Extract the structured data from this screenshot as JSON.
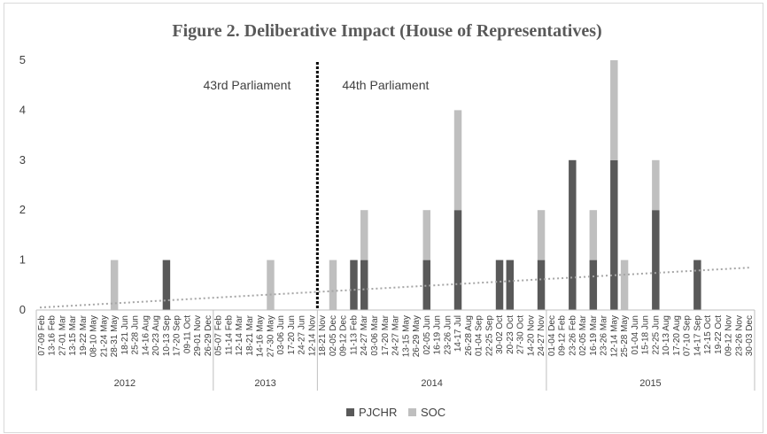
{
  "chart_data": {
    "type": "bar",
    "stacked": true,
    "title": "Figure 2. Deliberative Impact (House of Representatives)",
    "ylim": [
      0,
      5
    ],
    "yticks": [
      0,
      1,
      2,
      3,
      4,
      5
    ],
    "grid": false,
    "legend_position": "bottom",
    "categories": [
      "07-09 Feb",
      "13-16 Feb",
      "27-01 Mar",
      "13-15 Mar",
      "19-22 Mar",
      "08-10 May",
      "21-24 May",
      "28-31 May",
      "18-21 Jun",
      "25-28 Jun",
      "14-16 Aug",
      "20-23 Aug",
      "10-13 Sep",
      "17-20 Sep",
      "09-11 Oct",
      "29-01 Nov",
      "26-29 Dec",
      "05-07 Feb",
      "11-14 Feb",
      "12-14 Mar",
      "18-21 Mar",
      "14-16 May",
      "27-30 May",
      "03-06 Jun",
      "17-20 Jun",
      "24-27 Jun",
      "12-14 Nov",
      "18-21 Nov",
      "02-05 Dec",
      "09-12 Dec",
      "11-13 Feb",
      "24-27 Mar",
      "03-06 Mar",
      "17-20 Mar",
      "24-27 Mar",
      "13-15 May",
      "26-29 May",
      "02-05 Jun",
      "16-19 Jun",
      "23-26 Jun",
      "14-17 Jul",
      "26-28 Aug",
      "01-04 Sep",
      "22-25 Sep",
      "30-02 Oct",
      "20-23 Oct",
      "27-30 Oct",
      "14-20 Nov",
      "24-27 Nov",
      "01-04 Dec",
      "09-12 Feb",
      "23-26 Feb",
      "02-05 Mar",
      "16-19 Mar",
      "23-26 Mar",
      "12-14 May",
      "25-28 May",
      "01-04 Jun",
      "15-18 Jun",
      "22-25 Jun",
      "10-13 Aug",
      "17-20 Aug",
      "07-10 Sep",
      "14-17 Sep",
      "12-15 Oct",
      "19-22 Oct",
      "09-12 Nov",
      "23-26 Nov",
      "30-03 Dec"
    ],
    "series": [
      {
        "name": "PJCHR",
        "color": "#595959",
        "values": [
          0,
          0,
          0,
          0,
          0,
          0,
          0,
          0,
          0,
          0,
          0,
          0,
          1,
          0,
          0,
          0,
          0,
          0,
          0,
          0,
          0,
          0,
          0,
          0,
          0,
          0,
          0,
          0,
          0,
          0,
          1,
          1,
          0,
          0,
          0,
          0,
          0,
          1,
          0,
          0,
          2,
          0,
          0,
          0,
          1,
          1,
          0,
          0,
          1,
          0,
          0,
          3,
          0,
          1,
          0,
          3,
          0,
          0,
          0,
          2,
          0,
          0,
          0,
          1,
          0,
          0,
          0,
          0,
          0
        ]
      },
      {
        "name": "SOC",
        "color": "#bfbfbf",
        "values": [
          0,
          0,
          0,
          0,
          0,
          0,
          0,
          1,
          0,
          0,
          0,
          0,
          0,
          0,
          0,
          0,
          0,
          0,
          0,
          0,
          0,
          0,
          1,
          0,
          0,
          0,
          0,
          0,
          1,
          0,
          0,
          1,
          0,
          0,
          0,
          0,
          0,
          1,
          0,
          0,
          2,
          0,
          0,
          0,
          0,
          0,
          0,
          0,
          1,
          0,
          0,
          0,
          0,
          1,
          0,
          2,
          1,
          0,
          0,
          1,
          0,
          0,
          0,
          0,
          0,
          0,
          0,
          0,
          0
        ]
      }
    ],
    "year_groups": [
      {
        "label": "2012",
        "count": 17
      },
      {
        "label": "2013",
        "count": 10
      },
      {
        "label": "2014",
        "count": 22
      },
      {
        "label": "2015",
        "count": 20
      }
    ],
    "trendline": {
      "start": 0.05,
      "end": 0.85
    },
    "annotations": {
      "left_label": "43rd Parliament",
      "right_label": "44th Parliament",
      "divider_after_index": 26
    }
  }
}
